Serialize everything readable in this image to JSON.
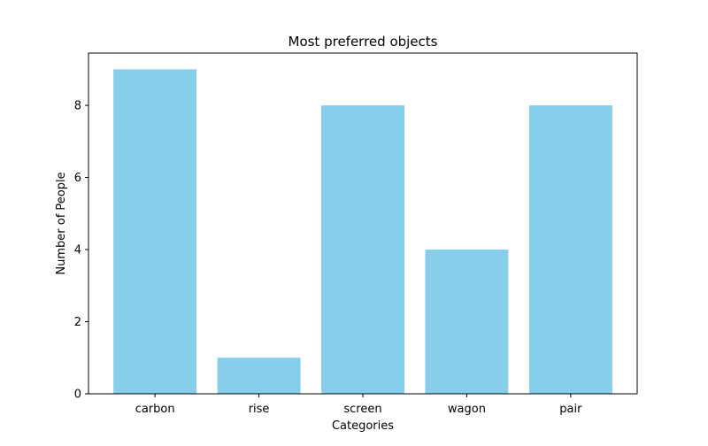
{
  "chart_data": {
    "type": "bar",
    "title": "Most preferred objects",
    "xlabel": "Categories",
    "ylabel": "Number of People",
    "categories": [
      "carbon",
      "rise",
      "screen",
      "wagon",
      "pair"
    ],
    "values": [
      9,
      1,
      8,
      4,
      8
    ],
    "ylim": [
      0,
      9.45
    ],
    "yticks": [
      0,
      2,
      4,
      6,
      8
    ],
    "bar_color": "#87CEEB",
    "grid": false,
    "legend": "none"
  }
}
